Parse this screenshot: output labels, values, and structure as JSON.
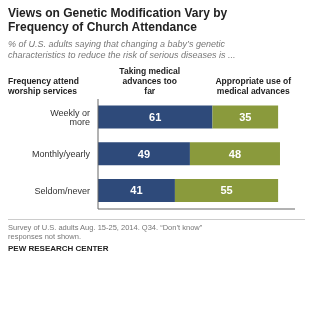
{
  "chart_data": {
    "type": "bar",
    "orientation": "horizontal",
    "stacked": true,
    "data_labels": true,
    "tick_labels": "y",
    "title": "Views on Genetic Modification Vary by\nFrequency of Church Attendance",
    "subtitle": "% of U.S. adults saying that changing a baby’s genetic\ncharacteristics to reduce the risk of serious diseases is ...",
    "ylabel": "Frequency attend\nworship services",
    "categories": [
      "Weekly or more",
      "Monthly/yearly",
      "Seldom/never"
    ],
    "series": [
      {
        "name": "Taking medical\nadvances too\nfar",
        "color": "#2E4A7A",
        "values": [
          61,
          49,
          41
        ]
      },
      {
        "name": "Appropriate use of\nmedical advances",
        "color": "#8A9A3C",
        "values": [
          35,
          48,
          55
        ]
      }
    ],
    "xlim": [
      0,
      105
    ],
    "annotations": [
      "Survey of U.S. adults Aug. 15-25, 2014. Q34. “Don’t know”\nresponses not shown.",
      "PEW RESEARCH CENTER"
    ]
  }
}
